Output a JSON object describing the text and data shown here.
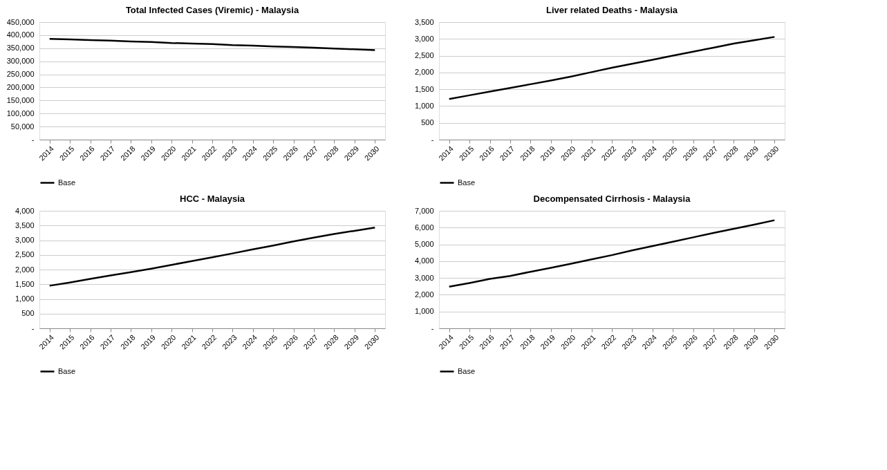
{
  "chart_data": [
    {
      "type": "line",
      "title": "Total Infected Cases (Viremic) - Malaysia",
      "categories": [
        "2014",
        "2015",
        "2016",
        "2017",
        "2018",
        "2019",
        "2020",
        "2021",
        "2022",
        "2023",
        "2024",
        "2025",
        "2026",
        "2027",
        "2028",
        "2029",
        "2030"
      ],
      "series": [
        {
          "name": "Base",
          "color": "#000000",
          "values": [
            386000,
            384000,
            381000,
            379000,
            376000,
            374000,
            370000,
            368000,
            366000,
            362000,
            360000,
            357000,
            355000,
            352000,
            349000,
            346000,
            343000
          ]
        }
      ],
      "ylim": [
        0,
        450000
      ],
      "yticks": [
        {
          "value": 0,
          "label": "-"
        },
        {
          "value": 50000,
          "label": "50,000"
        },
        {
          "value": 100000,
          "label": "100,000"
        },
        {
          "value": 150000,
          "label": "150,000"
        },
        {
          "value": 200000,
          "label": "200,000"
        },
        {
          "value": 250000,
          "label": "250,000"
        },
        {
          "value": 300000,
          "label": "300,000"
        },
        {
          "value": 350000,
          "label": "350,000"
        },
        {
          "value": 400000,
          "label": "400,000"
        },
        {
          "value": 450000,
          "label": "450,000"
        }
      ],
      "grid": "y",
      "legend": "bottom",
      "marker": "none",
      "line_style": "solid"
    },
    {
      "type": "line",
      "title": "Liver related Deaths - Malaysia",
      "categories": [
        "2014",
        "2015",
        "2016",
        "2017",
        "2018",
        "2019",
        "2020",
        "2021",
        "2022",
        "2023",
        "2024",
        "2025",
        "2026",
        "2027",
        "2028",
        "2029",
        "2030"
      ],
      "series": [
        {
          "name": "Base",
          "color": "#000000",
          "values": [
            1210,
            1320,
            1430,
            1540,
            1650,
            1760,
            1880,
            2010,
            2140,
            2260,
            2380,
            2500,
            2620,
            2740,
            2860,
            2960,
            3060
          ]
        }
      ],
      "ylim": [
        0,
        3500
      ],
      "yticks": [
        {
          "value": 0,
          "label": "-"
        },
        {
          "value": 500,
          "label": "500"
        },
        {
          "value": 1000,
          "label": "1,000"
        },
        {
          "value": 1500,
          "label": "1,500"
        },
        {
          "value": 2000,
          "label": "2,000"
        },
        {
          "value": 2500,
          "label": "2,500"
        },
        {
          "value": 3000,
          "label": "3,000"
        },
        {
          "value": 3500,
          "label": "3,500"
        }
      ],
      "grid": "y",
      "legend": "bottom",
      "marker": "none",
      "line_style": "solid"
    },
    {
      "type": "line",
      "title": "HCC - Malaysia",
      "categories": [
        "2014",
        "2015",
        "2016",
        "2017",
        "2018",
        "2019",
        "2020",
        "2021",
        "2022",
        "2023",
        "2024",
        "2025",
        "2026",
        "2027",
        "2028",
        "2029",
        "2030"
      ],
      "series": [
        {
          "name": "Base",
          "color": "#000000",
          "values": [
            1450,
            1560,
            1680,
            1800,
            1910,
            2030,
            2160,
            2290,
            2420,
            2550,
            2690,
            2820,
            2960,
            3090,
            3210,
            3320,
            3430
          ]
        }
      ],
      "ylim": [
        0,
        4000
      ],
      "yticks": [
        {
          "value": 0,
          "label": "-"
        },
        {
          "value": 500,
          "label": "500"
        },
        {
          "value": 1000,
          "label": "1,000"
        },
        {
          "value": 1500,
          "label": "1,500"
        },
        {
          "value": 2000,
          "label": "2,000"
        },
        {
          "value": 2500,
          "label": "2,500"
        },
        {
          "value": 3000,
          "label": "3,000"
        },
        {
          "value": 3500,
          "label": "3,500"
        },
        {
          "value": 4000,
          "label": "4,000"
        }
      ],
      "grid": "y",
      "legend": "bottom",
      "marker": "none",
      "line_style": "solid"
    },
    {
      "type": "line",
      "title": "Decompensated Cirrhosis - Malaysia",
      "categories": [
        "2014",
        "2015",
        "2016",
        "2017",
        "2018",
        "2019",
        "2020",
        "2021",
        "2022",
        "2023",
        "2024",
        "2025",
        "2026",
        "2027",
        "2028",
        "2029",
        "2030"
      ],
      "series": [
        {
          "name": "Base",
          "color": "#000000",
          "values": [
            2480,
            2700,
            2940,
            3120,
            3370,
            3600,
            3850,
            4110,
            4360,
            4640,
            4900,
            5160,
            5420,
            5680,
            5930,
            6180,
            6440
          ]
        }
      ],
      "ylim": [
        0,
        7000
      ],
      "yticks": [
        {
          "value": 0,
          "label": "-"
        },
        {
          "value": 1000,
          "label": "1,000"
        },
        {
          "value": 2000,
          "label": "2,000"
        },
        {
          "value": 3000,
          "label": "3,000"
        },
        {
          "value": 4000,
          "label": "4,000"
        },
        {
          "value": 5000,
          "label": "5,000"
        },
        {
          "value": 6000,
          "label": "6,000"
        },
        {
          "value": 7000,
          "label": "7,000"
        }
      ],
      "grid": "y",
      "legend": "bottom",
      "marker": "none",
      "line_style": "solid"
    }
  ]
}
